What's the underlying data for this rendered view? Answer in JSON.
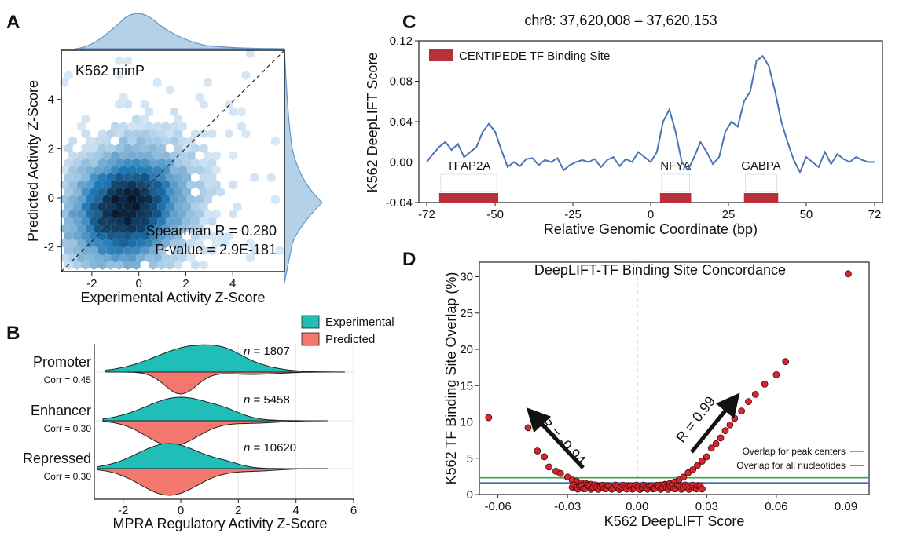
{
  "panel_labels": [
    "A",
    "B",
    "C",
    "D"
  ],
  "panel_a": {
    "annotation": "K562 minP",
    "xlabel": "Experimental Activity Z-Score",
    "ylabel": "Predicted Activity Z-Score",
    "stat_r": "Spearman R = 0.280",
    "stat_p": "P-value = 2.9E-181",
    "xticks": [
      "-2",
      "0",
      "2",
      "4"
    ],
    "yticks": [
      "-2",
      "0",
      "2",
      "4"
    ],
    "color": "#1f77b4"
  },
  "panel_b": {
    "xlabel": "MPRA Regulatory Activity Z-Score",
    "xticks": [
      "-2",
      "0",
      "2",
      "4",
      "6"
    ],
    "legend": [
      {
        "label": "Experimental",
        "color": "#1fbfb8"
      },
      {
        "label": "Predicted",
        "color": "#f4776e"
      }
    ],
    "rows": [
      {
        "name": "Promoter",
        "corr": "Corr = 0.45",
        "n_label": "n",
        "n_value": "= 1807"
      },
      {
        "name": "Enhancer",
        "corr": "Corr = 0.30",
        "n_label": "n",
        "n_value": "= 5458"
      },
      {
        "name": "Repressed",
        "corr": "Corr = 0.30",
        "n_label": "n",
        "n_value": "= 10620"
      }
    ]
  },
  "panel_c": {
    "title": "chr8: 37,620,008 – 37,620,153",
    "xlabel": "Relative Genomic Coordinate (bp)",
    "ylabel": "K562 DeepLIFT Score",
    "legend": "CENTIPEDE TF Binding Site",
    "xticks": [
      "-72",
      "-50",
      "-25",
      "0",
      "25",
      "50",
      "72"
    ],
    "yticks": [
      "-0.04",
      "0.00",
      "0.04",
      "0.08",
      "0.12"
    ],
    "motifs": [
      {
        "name": "TFAP2A",
        "from": -68,
        "to": -49
      },
      {
        "name": "NFYA",
        "from": 3,
        "to": 13
      },
      {
        "name": "GABPA",
        "from": 30,
        "to": 41
      }
    ],
    "line_color": "#4a74b4",
    "site_color": "#b8303a"
  },
  "panel_d": {
    "title": "DeepLIFT-TF Binding Site Concordance",
    "xlabel": "K562 DeepLIFT Score",
    "ylabel": "K562 TF Binding Site Overlap (%)",
    "xticks": [
      "-0.06",
      "-0.03",
      "0.00",
      "0.03",
      "0.06",
      "0.09"
    ],
    "yticks": [
      "0",
      "5",
      "10",
      "15",
      "20",
      "25",
      "30"
    ],
    "arrow_left": "R = -0.94",
    "arrow_right": "R = 0.99",
    "ref_lines": [
      {
        "label": "Overlap for peak centers",
        "value": 2.3,
        "color": "#3aa33a"
      },
      {
        "label": "Overlap for all nucleotides",
        "value": 1.6,
        "color": "#2c6fb5"
      }
    ],
    "point_color": "#d7262e"
  },
  "chart_data": [
    {
      "panel": "A",
      "type": "heatmap",
      "xlabel": "Experimental Activity Z-Score",
      "ylabel": "Predicted Activity Z-Score",
      "xlim": [
        -3.3,
        6.2
      ],
      "ylim": [
        -3.0,
        6.0
      ],
      "density_center": [
        -0.5,
        -0.4
      ],
      "spearman_r": 0.28,
      "p_value": "2.9E-181"
    },
    {
      "panel": "B",
      "type": "area",
      "categories": [
        "Promoter",
        "Enhancer",
        "Repressed"
      ],
      "series": [
        {
          "name": "Experimental"
        },
        {
          "name": "Predicted"
        }
      ],
      "n": [
        1807,
        5458,
        10620
      ],
      "corr": [
        0.45,
        0.3,
        0.3
      ],
      "xlim": [
        -3,
        6
      ]
    },
    {
      "panel": "C",
      "type": "line",
      "title": "chr8: 37,620,008 – 37,620,153",
      "xlabel": "Relative Genomic Coordinate (bp)",
      "ylabel": "K562 DeepLIFT Score",
      "xlim": [
        -72,
        72
      ],
      "ylim": [
        -0.04,
        0.12
      ],
      "x": [
        -72,
        -70,
        -68,
        -66,
        -64,
        -62,
        -60,
        -58,
        -56,
        -54,
        -52,
        -50,
        -48,
        -46,
        -44,
        -42,
        -40,
        -38,
        -36,
        -34,
        -32,
        -30,
        -28,
        -26,
        -24,
        -22,
        -20,
        -18,
        -16,
        -14,
        -12,
        -10,
        -8,
        -6,
        -4,
        -2,
        0,
        2,
        4,
        6,
        8,
        10,
        12,
        14,
        16,
        18,
        20,
        22,
        24,
        26,
        28,
        30,
        32,
        34,
        36,
        38,
        40,
        42,
        44,
        46,
        48,
        50,
        52,
        54,
        56,
        58,
        60,
        62,
        64,
        66,
        68,
        70,
        72
      ],
      "y": [
        0.0,
        0.008,
        0.015,
        0.02,
        0.012,
        0.018,
        0.005,
        0.01,
        0.015,
        0.03,
        0.038,
        0.03,
        0.012,
        -0.005,
        0.0,
        -0.004,
        0.003,
        0.004,
        -0.003,
        0.002,
        0.0,
        0.004,
        -0.008,
        -0.003,
        0.0,
        0.002,
        0.0,
        0.003,
        -0.005,
        0.002,
        0.005,
        -0.004,
        0.003,
        0.0,
        0.01,
        0.005,
        0.0,
        0.01,
        0.04,
        0.052,
        0.03,
        0.0,
        -0.008,
        0.005,
        0.02,
        0.01,
        -0.002,
        0.005,
        0.03,
        0.04,
        0.035,
        0.06,
        0.07,
        0.1,
        0.105,
        0.095,
        0.07,
        0.04,
        0.02,
        0.002,
        -0.01,
        0.005,
        0.0,
        -0.005,
        0.01,
        -0.002,
        0.008,
        0.003,
        0.0,
        0.005,
        0.002,
        0.0,
        0.0
      ]
    },
    {
      "panel": "D",
      "type": "scatter",
      "title": "DeepLIFT-TF Binding Site Concordance",
      "xlabel": "K562 DeepLIFT Score",
      "ylabel": "K562 TF Binding Site Overlap (%)",
      "xlim": [
        -0.068,
        0.1
      ],
      "ylim": [
        0,
        32
      ],
      "x": [
        -0.064,
        -0.047,
        -0.043,
        -0.04,
        -0.038,
        -0.035,
        -0.033,
        -0.03,
        -0.028,
        -0.026,
        -0.024,
        -0.022,
        -0.02,
        -0.018,
        -0.016,
        -0.014,
        -0.012,
        -0.01,
        -0.008,
        -0.006,
        -0.004,
        -0.002,
        0.0,
        0.002,
        0.004,
        0.006,
        0.008,
        0.01,
        0.012,
        0.014,
        0.016,
        0.018,
        0.02,
        0.022,
        0.024,
        0.026,
        0.028,
        0.03,
        0.032,
        0.034,
        0.036,
        0.038,
        0.04,
        0.042,
        0.045,
        0.048,
        0.051,
        0.055,
        0.06,
        0.064,
        0.091
      ],
      "y": [
        10.6,
        9.2,
        6.0,
        5.2,
        3.8,
        3.2,
        2.9,
        2.4,
        2.0,
        1.8,
        1.6,
        1.5,
        1.4,
        1.3,
        1.2,
        1.2,
        1.1,
        1.1,
        1.0,
        1.0,
        1.0,
        1.0,
        1.0,
        1.0,
        1.1,
        1.1,
        1.2,
        1.3,
        1.4,
        1.5,
        1.7,
        2.0,
        2.4,
        3.0,
        3.4,
        4.0,
        4.6,
        5.2,
        6.4,
        7.0,
        7.8,
        8.8,
        9.6,
        10.5,
        11.5,
        12.8,
        13.8,
        15.2,
        16.5,
        18.3,
        30.4
      ],
      "annotations": [
        "R = -0.94",
        "R = 0.99"
      ]
    }
  ]
}
